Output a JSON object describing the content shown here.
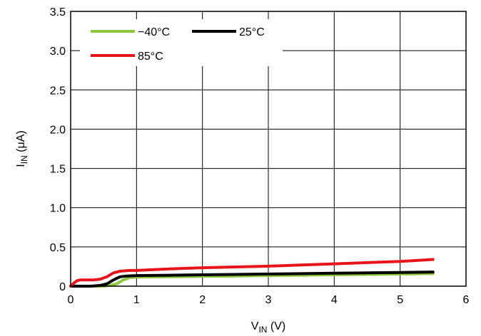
{
  "chart_data": {
    "type": "line",
    "xlabel": {
      "main": "V",
      "sub": "IN",
      "unit": " (V)"
    },
    "ylabel": {
      "main": "I",
      "sub": "IN",
      "unit": " (μA)"
    },
    "xlim": [
      0,
      6
    ],
    "ylim": [
      0,
      3.5
    ],
    "x_ticks": [
      "0",
      "1",
      "2",
      "3",
      "4",
      "5",
      "6"
    ],
    "y_ticks": [
      "0",
      "0.5",
      "1.0",
      "1.5",
      "2.0",
      "2.5",
      "3.0",
      "3.5"
    ],
    "grid": true,
    "legend_position": "top-left",
    "series": [
      {
        "name": "−40°C",
        "color": "#8cc63f",
        "x": [
          0,
          0.3,
          0.5,
          0.6,
          0.7,
          0.8,
          0.9,
          1.0,
          1.5,
          2,
          2.5,
          3,
          3.5,
          4,
          4.5,
          5,
          5.5
        ],
        "y": [
          0,
          0,
          0,
          0.01,
          0.03,
          0.08,
          0.11,
          0.115,
          0.12,
          0.125,
          0.13,
          0.135,
          0.14,
          0.145,
          0.15,
          0.155,
          0.16
        ]
      },
      {
        "name": "25°C",
        "color": "#000000",
        "x": [
          0,
          0.3,
          0.45,
          0.55,
          0.65,
          0.75,
          0.85,
          1.0,
          1.5,
          2,
          2.5,
          3,
          3.5,
          4,
          4.5,
          5,
          5.5
        ],
        "y": [
          0,
          0,
          0.01,
          0.03,
          0.08,
          0.12,
          0.13,
          0.135,
          0.14,
          0.145,
          0.15,
          0.155,
          0.16,
          0.165,
          0.17,
          0.175,
          0.18
        ]
      },
      {
        "name": "85°C",
        "color": "#e8141b",
        "x": [
          0,
          0.05,
          0.1,
          0.15,
          0.25,
          0.35,
          0.45,
          0.55,
          0.65,
          0.75,
          0.9,
          1.0,
          1.5,
          2,
          2.5,
          3,
          3.5,
          4,
          4.5,
          5,
          5.5
        ],
        "y": [
          0,
          0.04,
          0.07,
          0.08,
          0.08,
          0.08,
          0.09,
          0.12,
          0.17,
          0.19,
          0.2,
          0.2,
          0.22,
          0.235,
          0.245,
          0.255,
          0.27,
          0.285,
          0.3,
          0.315,
          0.34
        ]
      }
    ]
  }
}
